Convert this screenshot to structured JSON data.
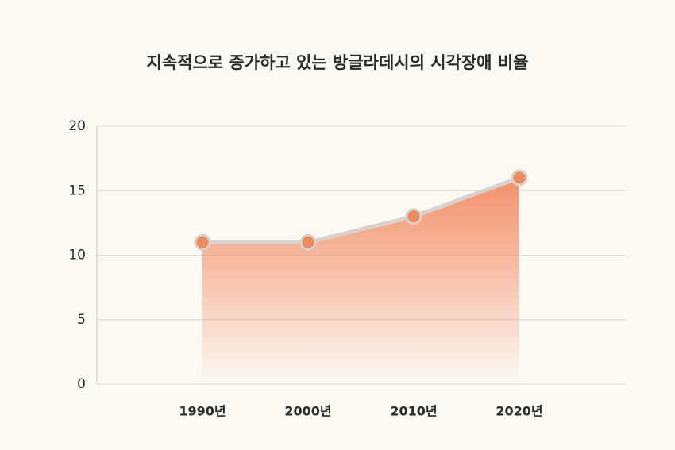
{
  "chart_data": {
    "type": "area",
    "title": "지속적으로 증가하고 있는 방글라데시의 시각장애 비율",
    "categories": [
      "1990년",
      "2000년",
      "2010년",
      "2020년"
    ],
    "series": [
      {
        "name": null,
        "color": "#ef8a5d",
        "values": [
          11,
          11,
          13,
          16
        ]
      }
    ],
    "ylim": [
      0,
      20
    ],
    "yticks": [
      0,
      5,
      10,
      15,
      20
    ],
    "grid": true
  }
}
